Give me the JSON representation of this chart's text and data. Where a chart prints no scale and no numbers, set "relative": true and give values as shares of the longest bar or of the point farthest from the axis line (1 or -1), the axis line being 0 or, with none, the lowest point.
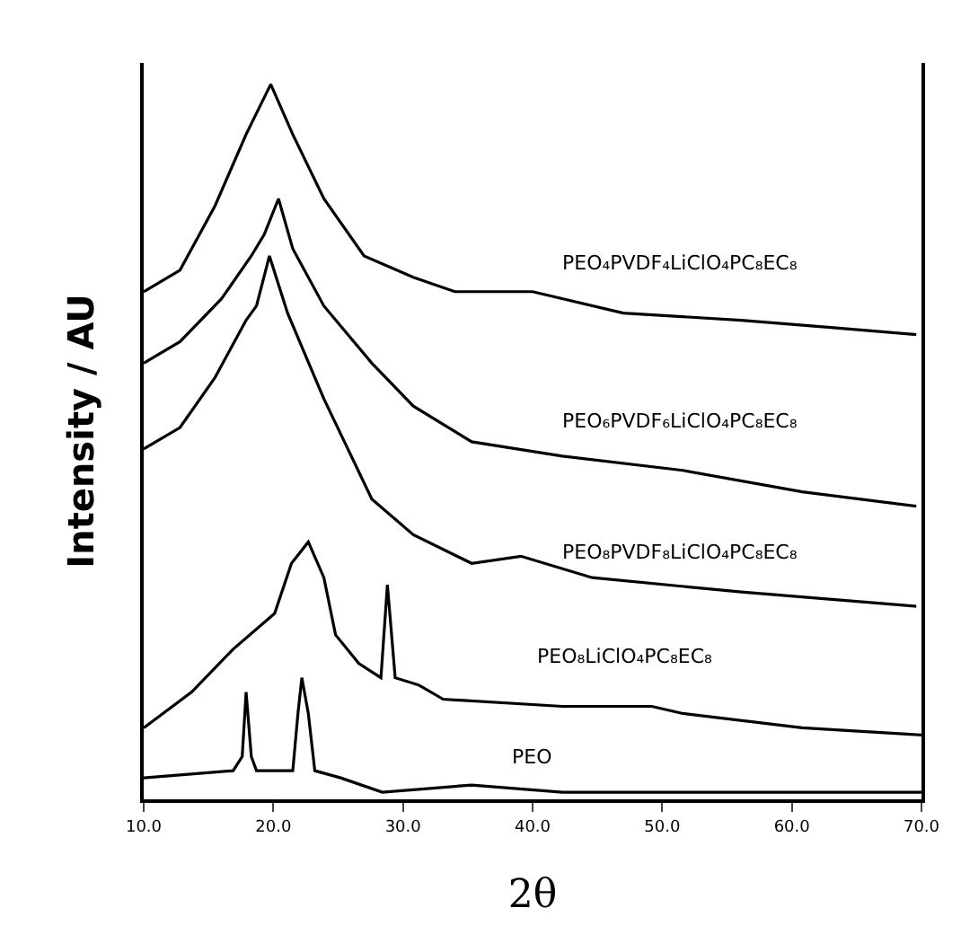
{
  "chart_data": {
    "type": "line",
    "relative": true,
    "xlabel": "2θ",
    "ylabel": "Intensity / AU",
    "xlim": [
      10,
      70
    ],
    "xticks": [
      {
        "value": 10,
        "label": "10.0"
      },
      {
        "value": 20,
        "label": "20.0"
      },
      {
        "value": 30,
        "label": "30.0"
      },
      {
        "value": 40,
        "label": "40.0"
      },
      {
        "value": 50,
        "label": "50.0"
      },
      {
        "value": 60,
        "label": "60.0"
      },
      {
        "value": 70,
        "label": "70.0"
      }
    ],
    "legend": false,
    "marker": "none",
    "line_style": "solid",
    "series": [
      {
        "name": "PEO₄PVDF₄LiClO₄PC₈EC₈",
        "color": "#000000",
        "x": [
          10,
          12.8,
          15.5,
          17.9,
          19.8,
          21.5,
          23.9,
          27.0,
          30.8,
          34.0,
          40.0,
          47.0,
          56.1,
          63.0,
          69.6
        ],
        "values": [
          0.71,
          0.74,
          0.83,
          0.93,
          1.0,
          0.93,
          0.84,
          0.76,
          0.73,
          0.71,
          0.71,
          0.68,
          0.67,
          0.66,
          0.65
        ]
      },
      {
        "name": "PEO₆PVDF₆LiClO₄PC₈EC₈",
        "color": "#000000",
        "x": [
          10,
          12.8,
          16.0,
          18.3,
          19.3,
          20.4,
          21.5,
          23.9,
          27.6,
          30.8,
          35.3,
          42.3,
          51.6,
          60.8,
          69.6
        ],
        "values": [
          0.61,
          0.64,
          0.7,
          0.76,
          0.79,
          0.84,
          0.77,
          0.69,
          0.61,
          0.55,
          0.5,
          0.48,
          0.46,
          0.43,
          0.41
        ]
      },
      {
        "name": "PEO₈PVDF₈LiClO₄PC₈EC₈",
        "color": "#000000",
        "x": [
          10,
          12.8,
          15.5,
          17.9,
          18.7,
          19.7,
          21.1,
          23.9,
          27.6,
          30.8,
          35.3,
          39.1,
          44.6,
          56.1,
          69.6
        ],
        "values": [
          0.49,
          0.52,
          0.59,
          0.67,
          0.69,
          0.76,
          0.68,
          0.56,
          0.42,
          0.37,
          0.33,
          0.34,
          0.31,
          0.29,
          0.27
        ]
      },
      {
        "name": "PEO₈LiClO₄PC₈EC₈",
        "color": "#000000",
        "x": [
          10,
          13.7,
          16.9,
          20.1,
          21.4,
          22.7,
          23.9,
          24.8,
          26.6,
          28.3,
          28.8,
          29.4,
          31.2,
          33.1,
          42.3,
          49.2,
          51.6,
          60.8,
          70
        ],
        "values": [
          0.1,
          0.15,
          0.21,
          0.26,
          0.33,
          0.36,
          0.31,
          0.23,
          0.19,
          0.17,
          0.3,
          0.17,
          0.16,
          0.14,
          0.13,
          0.13,
          0.12,
          0.1,
          0.09
        ]
      },
      {
        "name": "PEO",
        "color": "#000000",
        "x": [
          10,
          16.9,
          17.6,
          17.9,
          18.3,
          18.7,
          21.5,
          21.9,
          22.2,
          22.7,
          23.2,
          25.2,
          28.4,
          35.3,
          42.3,
          70
        ],
        "values": [
          0.03,
          0.04,
          0.06,
          0.15,
          0.06,
          0.04,
          0.04,
          0.12,
          0.17,
          0.12,
          0.04,
          0.03,
          0.01,
          0.02,
          0.01,
          0.01
        ]
      }
    ]
  }
}
